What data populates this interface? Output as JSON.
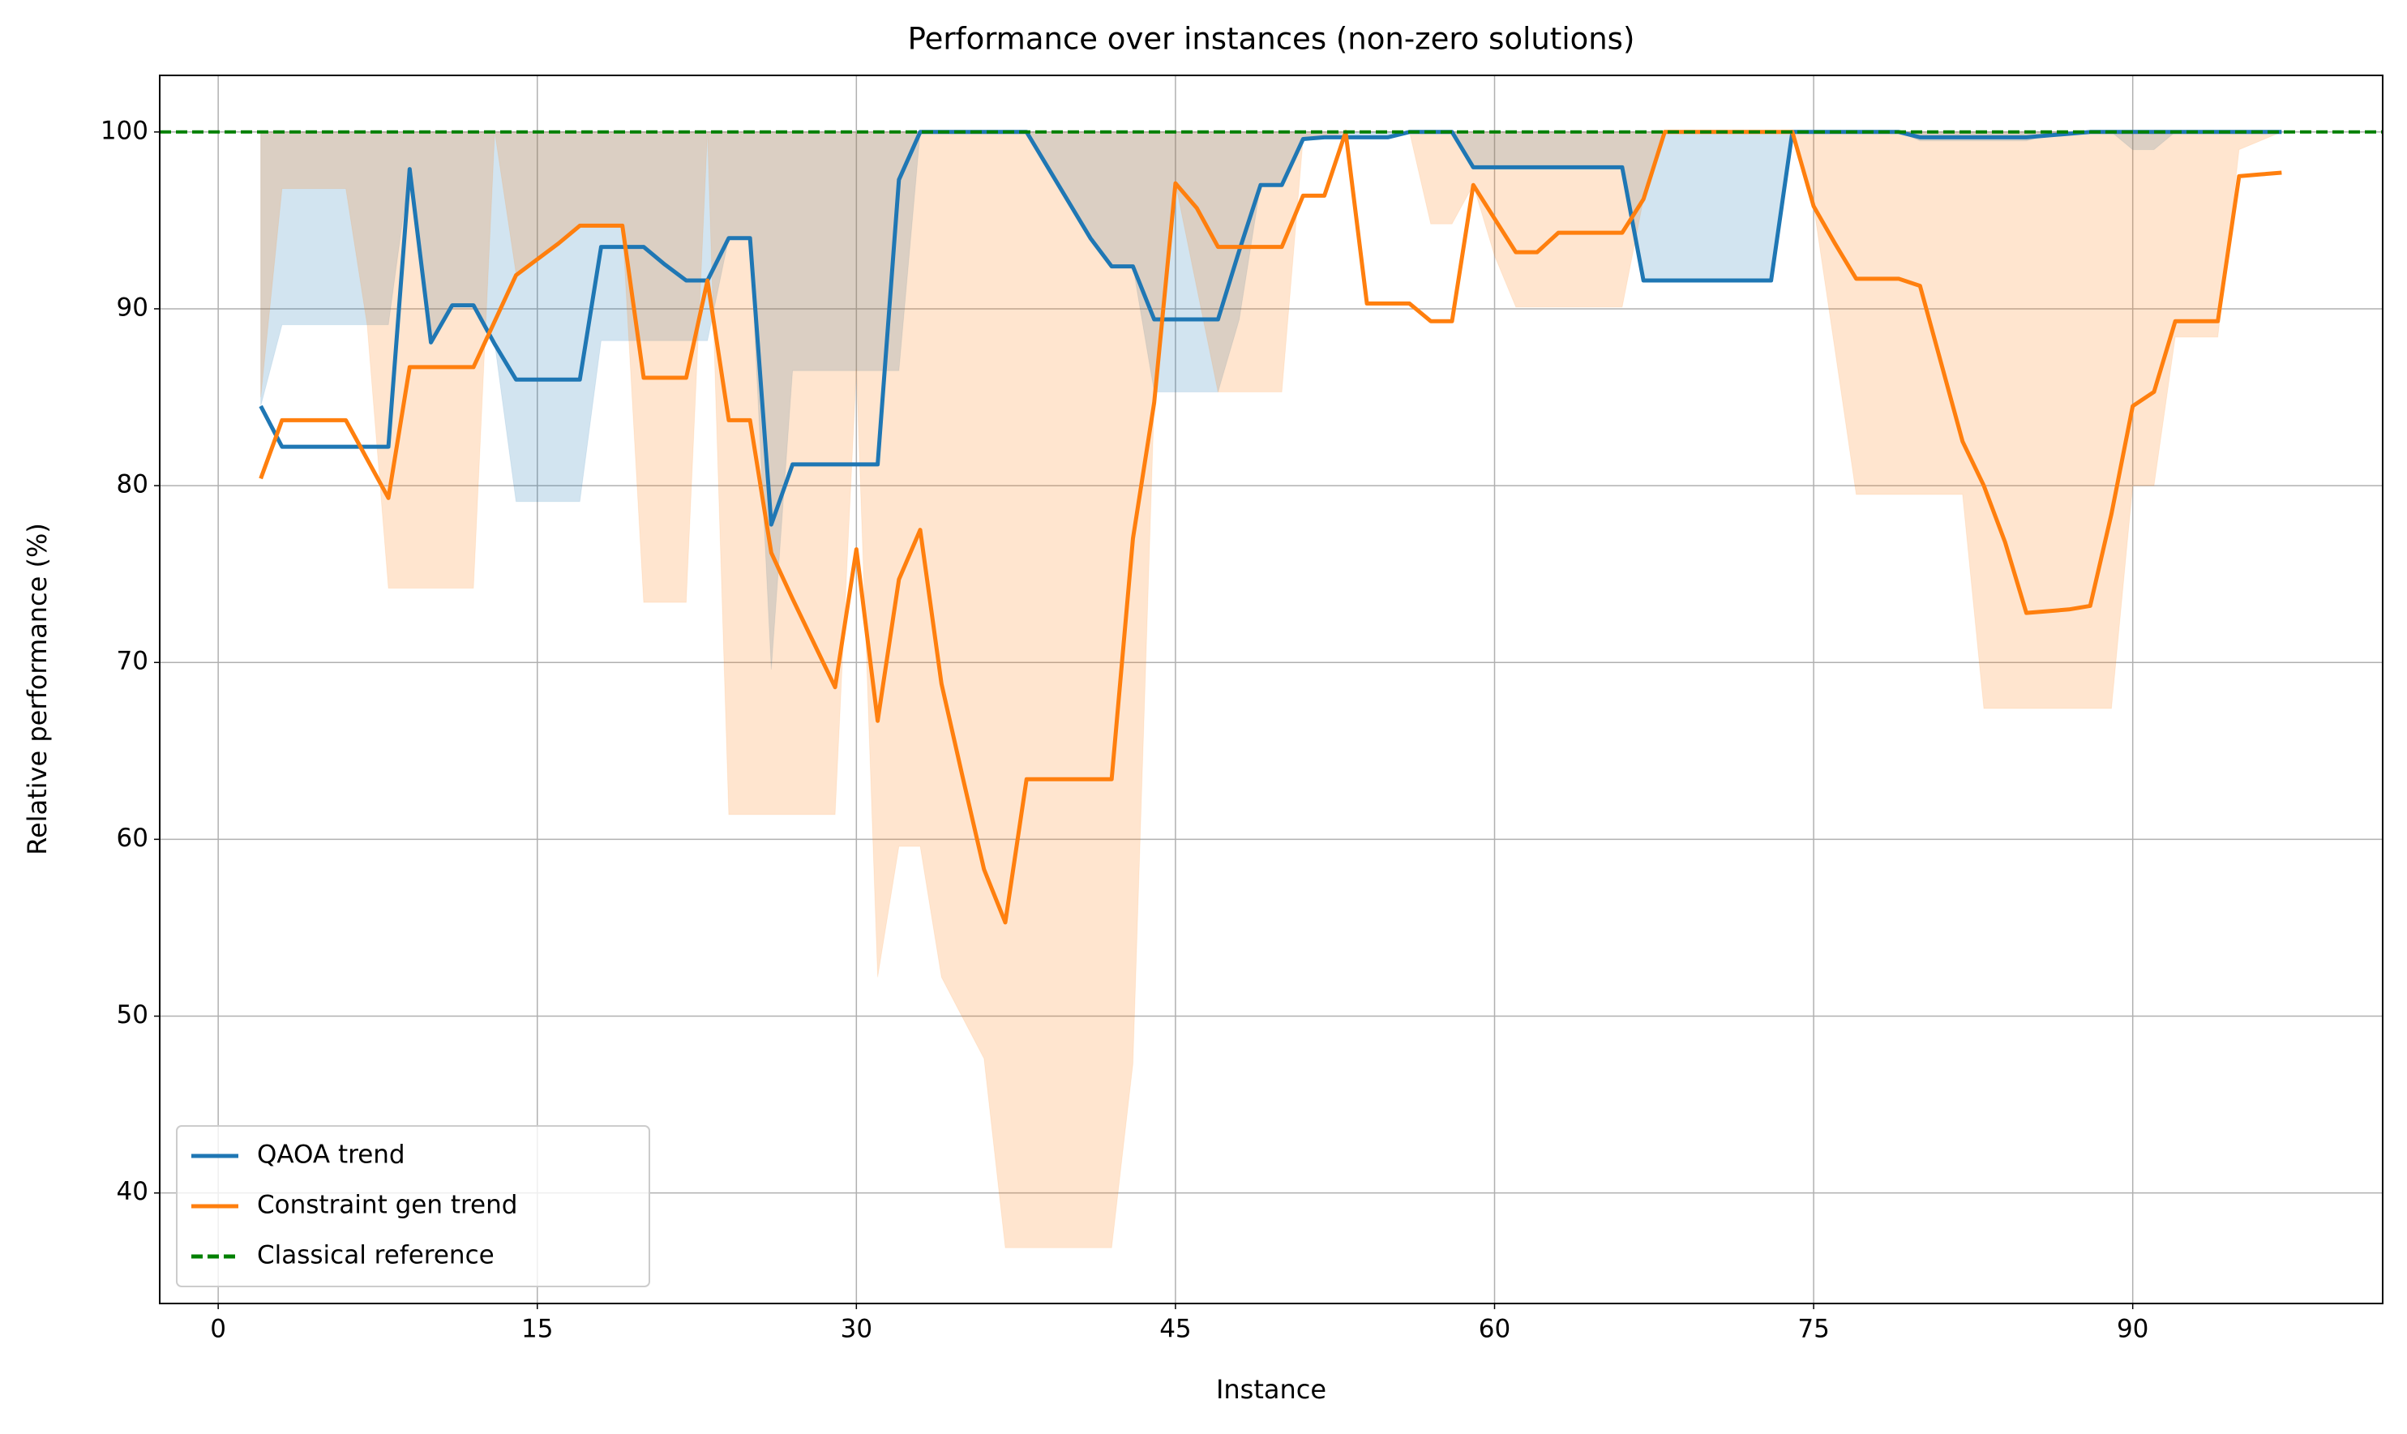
{
  "chart_data": {
    "type": "line",
    "title": "Performance over instances (non-zero solutions)",
    "x_label": "Instance",
    "y_label": "Relative performance (%)",
    "x": [
      2,
      3,
      4,
      5,
      6,
      7,
      8,
      9,
      10,
      11,
      12,
      13,
      14,
      15,
      16,
      17,
      18,
      19,
      20,
      21,
      22,
      23,
      24,
      25,
      26,
      27,
      28,
      29,
      30,
      31,
      32,
      33,
      34,
      35,
      36,
      37,
      38,
      39,
      40,
      41,
      42,
      43,
      44,
      45,
      46,
      47,
      48,
      49,
      50,
      51,
      52,
      53,
      54,
      55,
      56,
      57,
      58,
      59,
      60,
      61,
      62,
      63,
      64,
      65,
      66,
      67,
      68,
      69,
      70,
      71,
      72,
      73,
      74,
      75,
      76,
      77,
      78,
      79,
      80,
      81,
      82,
      83,
      84,
      85,
      86,
      87,
      88,
      89,
      90,
      91,
      92,
      93,
      94,
      95,
      96,
      97
    ],
    "series": [
      {
        "name": "QAOA trend",
        "color": "#1f77b4",
        "values": [
          84.5,
          82.2,
          82.2,
          82.2,
          82.2,
          82.2,
          82.2,
          97.9,
          88.1,
          90.2,
          90.2,
          88,
          86,
          86,
          86,
          86,
          93.5,
          93.5,
          93.5,
          92.5,
          91.6,
          91.6,
          94,
          94,
          77.8,
          81.2,
          81.2,
          81.2,
          81.2,
          81.2,
          97.3,
          100,
          100,
          100,
          100,
          100,
          100,
          98,
          96,
          94,
          92.4,
          92.4,
          89.4,
          89.4,
          89.4,
          89.4,
          93.3,
          97,
          97,
          99.6,
          99.7,
          99.7,
          99.7,
          99.7,
          100,
          100,
          100,
          98,
          98,
          98,
          98,
          98,
          98,
          98,
          98,
          91.6,
          91.6,
          91.6,
          91.6,
          91.6,
          91.6,
          91.6,
          100,
          100,
          100,
          100,
          100,
          100,
          99.7,
          99.7,
          99.7,
          99.7,
          99.7,
          99.7,
          99.8,
          99.9,
          100,
          100,
          100,
          100,
          100,
          100,
          100,
          100,
          100,
          100
        ],
        "lower": [
          84.5,
          89.1,
          89.1,
          89.1,
          89.1,
          89.1,
          89.1,
          97.9,
          88.1,
          90.2,
          90.2,
          88,
          79.1,
          79.1,
          79.1,
          79.1,
          88.2,
          88.2,
          88.2,
          88.2,
          88.2,
          88.2,
          94,
          94,
          69.6,
          86.5,
          86.5,
          86.5,
          86.5,
          86.5,
          86.5,
          100,
          100,
          100,
          100,
          100,
          100,
          98,
          96,
          94,
          92.4,
          92.4,
          85.3,
          85.3,
          85.3,
          85.3,
          89.4,
          97,
          97,
          99.5,
          99.7,
          99.7,
          99.7,
          99.7,
          100,
          100,
          100,
          98,
          98,
          98,
          98,
          98,
          98,
          98,
          98,
          91.6,
          91.6,
          91.6,
          91.6,
          91.6,
          91.6,
          91.6,
          100,
          100,
          100,
          100,
          100,
          100,
          99.5,
          99.5,
          99.5,
          99.5,
          99.5,
          99.5,
          99.8,
          99.9,
          100,
          100,
          99,
          99,
          100,
          100,
          100,
          100,
          100,
          100
        ],
        "upper": [
          100,
          100,
          100,
          100,
          100,
          100,
          100,
          100,
          100,
          100,
          100,
          100,
          100,
          100,
          100,
          100,
          100,
          100,
          100,
          100,
          100,
          100,
          100,
          100,
          100,
          100,
          100,
          100,
          100,
          100,
          100,
          100,
          100,
          100,
          100,
          100,
          100,
          100,
          100,
          100,
          100,
          100,
          100,
          100,
          100,
          100,
          100,
          100,
          100,
          100,
          100,
          100,
          100,
          100,
          100,
          100,
          100,
          100,
          100,
          100,
          100,
          100,
          100,
          100,
          100,
          100,
          100,
          100,
          100,
          100,
          100,
          100,
          100,
          100,
          100,
          100,
          100,
          100,
          100,
          100,
          100,
          100,
          100,
          100,
          100,
          100,
          100,
          100,
          100,
          100,
          100,
          100,
          100,
          100,
          100,
          100
        ]
      },
      {
        "name": "Constraint gen trend",
        "color": "#ff7f0e",
        "values": [
          80.4,
          83.7,
          83.7,
          83.7,
          83.7,
          81.5,
          79.3,
          86.7,
          86.7,
          86.7,
          86.7,
          89.3,
          91.9,
          92.8,
          93.7,
          94.7,
          94.7,
          94.7,
          86.1,
          86.1,
          86.1,
          91.6,
          83.7,
          83.7,
          76.2,
          73.6,
          71.1,
          68.6,
          76.4,
          66.7,
          74.7,
          77.5,
          68.8,
          63.5,
          58.3,
          55.3,
          63.4,
          63.4,
          63.4,
          63.4,
          63.4,
          77,
          84.7,
          97.1,
          95.7,
          93.5,
          93.5,
          93.5,
          93.5,
          96.4,
          96.4,
          100,
          90.3,
          90.3,
          90.3,
          89.3,
          89.3,
          97,
          95.1,
          93.2,
          93.2,
          94.3,
          94.3,
          94.3,
          94.3,
          96.2,
          100,
          100,
          100,
          100,
          100,
          100,
          100,
          95.8,
          93.7,
          91.7,
          91.7,
          91.7,
          91.3,
          86.9,
          82.5,
          80,
          76.8,
          72.8,
          72.9,
          73,
          73.2,
          78.4,
          84.5,
          85.3,
          89.3,
          89.3,
          89.3,
          97.5,
          97.6,
          97.7
        ],
        "lower": [
          85,
          96.8,
          96.8,
          96.8,
          96.8,
          89.1,
          74.2,
          74.2,
          74.2,
          74.2,
          74.2,
          100,
          92,
          92.9,
          93.7,
          94.7,
          94.7,
          94.7,
          73.4,
          73.4,
          73.4,
          100,
          61.4,
          61.4,
          61.4,
          61.4,
          61.4,
          61.4,
          86.6,
          52.2,
          59.6,
          59.6,
          52.2,
          49.9,
          47.6,
          36.9,
          36.9,
          36.9,
          36.9,
          36.9,
          36.9,
          47.3,
          84.7,
          97.1,
          91.2,
          85.3,
          85.3,
          85.3,
          85.3,
          99.6,
          99.6,
          100,
          100,
          100,
          100,
          94.8,
          94.8,
          97,
          93,
          90.1,
          90.1,
          90.1,
          90.1,
          90.1,
          90.1,
          96.2,
          100,
          100,
          100,
          100,
          100,
          100,
          100,
          95.8,
          87.7,
          79.5,
          79.5,
          79.5,
          79.5,
          79.5,
          79.5,
          67.4,
          67.4,
          67.4,
          67.4,
          67.4,
          67.4,
          67.4,
          80,
          80,
          88.4,
          88.4,
          88.4,
          99,
          99.5,
          100
        ],
        "upper": [
          100,
          100,
          100,
          100,
          100,
          100,
          100,
          100,
          100,
          100,
          100,
          100,
          100,
          100,
          100,
          100,
          100,
          100,
          100,
          100,
          100,
          100,
          100,
          100,
          100,
          100,
          100,
          100,
          100,
          100,
          100,
          100,
          100,
          100,
          100,
          100,
          100,
          100,
          100,
          100,
          100,
          100,
          100,
          100,
          100,
          100,
          100,
          100,
          100,
          100,
          100,
          100,
          100,
          100,
          100,
          100,
          100,
          100,
          100,
          100,
          100,
          100,
          100,
          100,
          100,
          100,
          100,
          100,
          100,
          100,
          100,
          100,
          100,
          100,
          100,
          100,
          100,
          100,
          100,
          100,
          100,
          100,
          100,
          100,
          100,
          100,
          100,
          100,
          100,
          100,
          100,
          100,
          100,
          100,
          100,
          100
        ]
      }
    ],
    "reference": {
      "name": "Classical reference",
      "value": 100,
      "color": "#008000"
    },
    "xlim": [
      -2.75,
      101.75
    ],
    "ylim": [
      33.75,
      103.2
    ],
    "xticks": [
      0,
      15,
      30,
      45,
      60,
      75,
      90
    ],
    "yticks": [
      40,
      50,
      60,
      70,
      80,
      90,
      100
    ],
    "grid": true,
    "legend": "lower left"
  }
}
